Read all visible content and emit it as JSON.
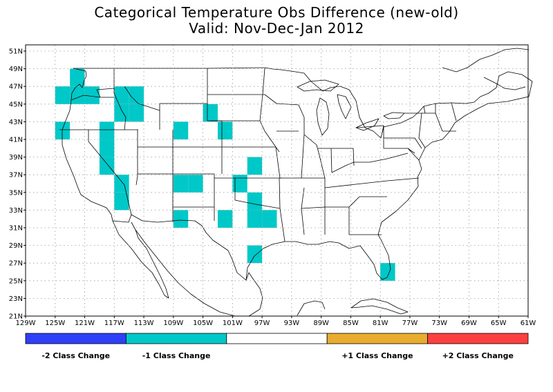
{
  "title": "Categorical Temperature Obs Difference (new-old)",
  "subtitle": "Valid: Nov-Dec-Jan 2012",
  "colors": {
    "minus2": "#2f3ff7",
    "minus1": "#00c8c8",
    "zero": "#ffffff",
    "plus1": "#e8ac2e",
    "plus2": "#fc4040",
    "grid": "#999999",
    "map_lines": "#000000"
  },
  "chart_data": {
    "type": "heatmap",
    "x_range": [
      -129,
      -61
    ],
    "y_range": [
      21,
      52
    ],
    "cell_size_deg": 2,
    "lat_labels": [
      "21N",
      "23N",
      "25N",
      "27N",
      "29N",
      "31N",
      "33N",
      "35N",
      "37N",
      "39N",
      "41N",
      "43N",
      "45N",
      "47N",
      "49N",
      "51N"
    ],
    "lon_labels": [
      "129W",
      "125W",
      "121W",
      "117W",
      "113W",
      "109W",
      "105W",
      "101W",
      "97W",
      "93W",
      "89W",
      "85W",
      "81W",
      "77W",
      "73W",
      "69W",
      "65W",
      "61W"
    ],
    "grid": true,
    "legend": {
      "placement": "bottom",
      "classes": [
        {
          "key": "minus2",
          "label": "-2 Class Change"
        },
        {
          "key": "minus1",
          "label": "-1 Class Change"
        },
        {
          "key": "zero",
          "label": ""
        },
        {
          "key": "plus1",
          "label": "+1 Class Change"
        },
        {
          "key": "plus2",
          "label": "+2 Class Change"
        }
      ]
    },
    "cells": [
      {
        "lon": -122,
        "lat": 48,
        "value": -1
      },
      {
        "lon": -124,
        "lat": 46,
        "value": -1
      },
      {
        "lon": -122,
        "lat": 46,
        "value": -1
      },
      {
        "lon": -120,
        "lat": 46,
        "value": -1
      },
      {
        "lon": -116,
        "lat": 46,
        "value": -1
      },
      {
        "lon": -114,
        "lat": 46,
        "value": -1
      },
      {
        "lon": -116,
        "lat": 44,
        "value": -1
      },
      {
        "lon": -114,
        "lat": 44,
        "value": -1
      },
      {
        "lon": -104,
        "lat": 44,
        "value": -1
      },
      {
        "lon": -124,
        "lat": 42,
        "value": -1
      },
      {
        "lon": -118,
        "lat": 42,
        "value": -1
      },
      {
        "lon": -108,
        "lat": 42,
        "value": -1
      },
      {
        "lon": -102,
        "lat": 42,
        "value": -1
      },
      {
        "lon": -118,
        "lat": 40,
        "value": -1
      },
      {
        "lon": -118,
        "lat": 38,
        "value": -1
      },
      {
        "lon": -98,
        "lat": 38,
        "value": -1
      },
      {
        "lon": -116,
        "lat": 36,
        "value": -1
      },
      {
        "lon": -108,
        "lat": 36,
        "value": -1
      },
      {
        "lon": -106,
        "lat": 36,
        "value": -1
      },
      {
        "lon": -100,
        "lat": 36,
        "value": -1
      },
      {
        "lon": -116,
        "lat": 34,
        "value": -1
      },
      {
        "lon": -98,
        "lat": 34,
        "value": -1
      },
      {
        "lon": -108,
        "lat": 32,
        "value": -1
      },
      {
        "lon": -102,
        "lat": 32,
        "value": -1
      },
      {
        "lon": -98,
        "lat": 32,
        "value": -1
      },
      {
        "lon": -96,
        "lat": 32,
        "value": -1
      },
      {
        "lon": -98,
        "lat": 28,
        "value": -1
      },
      {
        "lon": -80,
        "lat": 26,
        "value": -1
      }
    ]
  }
}
